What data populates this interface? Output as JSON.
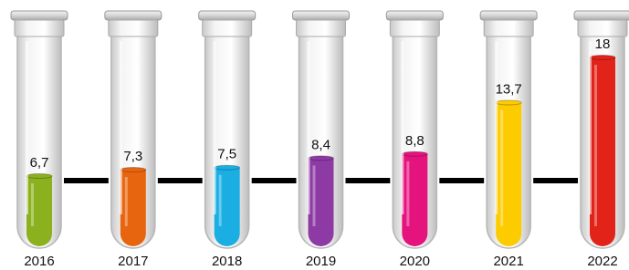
{
  "chart_data": {
    "type": "bar",
    "categories": [
      "2016",
      "2017",
      "2018",
      "2019",
      "2020",
      "2021",
      "2022"
    ],
    "values": [
      6.7,
      7.3,
      7.5,
      8.4,
      8.8,
      13.7,
      18
    ],
    "value_labels": [
      "6,7",
      "7,3",
      "7,5",
      "8,4",
      "8,8",
      "13,7",
      "18"
    ],
    "colors": [
      "#8cb11e",
      "#e8650f",
      "#1aaee3",
      "#8e3aa5",
      "#e5137e",
      "#fccc00",
      "#e2231a"
    ]
  }
}
